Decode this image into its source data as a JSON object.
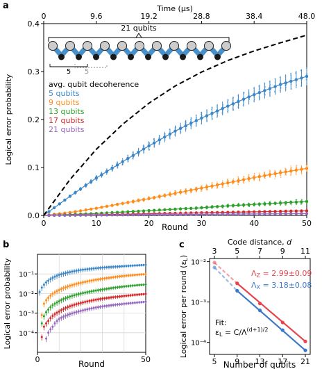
{
  "chart_data": [
    {
      "panel": "a",
      "type": "line",
      "xlabel": "Round",
      "ylabel": "Logical error probability",
      "x_top_label": "Time (μs)",
      "xlim": [
        0,
        50
      ],
      "ylim": [
        0,
        0.4
      ],
      "x_ticks": [
        "0",
        "10",
        "20",
        "30",
        "40",
        "50"
      ],
      "y_ticks": [
        "0.0",
        "0.1",
        "0.2",
        "0.3",
        "0.4"
      ],
      "x_top_ticks": [
        "0",
        "9.6",
        "19.2",
        "28.8",
        "38.4",
        "48.0"
      ],
      "legend_placement": "center-left",
      "legend": [
        "avg. qubit decoherence",
        "5 qubits",
        "9 qubits",
        "13 qubits",
        "17 qubits",
        "21 qubits"
      ],
      "inset": {
        "label_total": "21 qubits",
        "label_a": "5",
        "label_b": "5"
      },
      "reference": {
        "name": "avg. qubit decoherence",
        "color": "#000000",
        "style": "dashed",
        "x": [
          0,
          5,
          10,
          15,
          20,
          25,
          30,
          35,
          40,
          45,
          50
        ],
        "y": [
          0,
          0.075,
          0.138,
          0.19,
          0.234,
          0.27,
          0.299,
          0.323,
          0.343,
          0.36,
          0.376
        ]
      },
      "series": [
        {
          "name": "5 qubits",
          "color": "#3a86c8",
          "x": [
            0,
            5,
            10,
            15,
            20,
            25,
            30,
            35,
            40,
            45,
            50
          ],
          "y": [
            0,
            0.04,
            0.078,
            0.112,
            0.145,
            0.176,
            0.203,
            0.228,
            0.252,
            0.273,
            0.29
          ]
        },
        {
          "name": "9 qubits",
          "color": "#ff8c1a",
          "x": [
            0,
            5,
            10,
            15,
            20,
            25,
            30,
            35,
            40,
            45,
            50
          ],
          "y": [
            0,
            0.006,
            0.015,
            0.025,
            0.035,
            0.046,
            0.057,
            0.068,
            0.079,
            0.089,
            0.098
          ]
        },
        {
          "name": "13 qubits",
          "color": "#2ca02c",
          "x": [
            0,
            5,
            10,
            15,
            20,
            25,
            30,
            35,
            40,
            45,
            50
          ],
          "y": [
            0,
            0.002,
            0.004,
            0.007,
            0.01,
            0.013,
            0.016,
            0.02,
            0.023,
            0.026,
            0.029
          ]
        },
        {
          "name": "17 qubits",
          "color": "#d62728",
          "x": [
            0,
            5,
            10,
            15,
            20,
            25,
            30,
            35,
            40,
            45,
            50
          ],
          "y": [
            0,
            0.0007,
            0.0015,
            0.0025,
            0.0035,
            0.0045,
            0.0055,
            0.0065,
            0.0075,
            0.0085,
            0.0095
          ]
        },
        {
          "name": "21 qubits",
          "color": "#9467bd",
          "x": [
            0,
            5,
            10,
            15,
            20,
            25,
            30,
            35,
            40,
            45,
            50
          ],
          "y": [
            0,
            0.0003,
            0.0007,
            0.0011,
            0.0015,
            0.0019,
            0.0023,
            0.0027,
            0.0031,
            0.0034,
            0.0038
          ]
        }
      ]
    },
    {
      "panel": "b",
      "type": "scatter",
      "xlabel": "Round",
      "ylabel": "Logical error probability",
      "xlim": [
        0,
        50
      ],
      "ylim": [
        1e-05,
        1
      ],
      "y_scale": "log",
      "grid": true,
      "x_ticks": [
        "0",
        "50"
      ],
      "y_ticks": [
        "10⁻¹",
        "10⁻²",
        "10⁻³",
        "10⁻⁴"
      ],
      "series": [
        {
          "name": "5 qubits",
          "color": "#3a86c8",
          "x": [
            1,
            3,
            5,
            10,
            20,
            30,
            40,
            50
          ],
          "y": [
            0.012,
            0.028,
            0.045,
            0.09,
            0.16,
            0.21,
            0.25,
            0.29
          ]
        },
        {
          "name": "9 qubits",
          "color": "#ff8c1a",
          "x": [
            2,
            3,
            5,
            10,
            20,
            30,
            40,
            50
          ],
          "y": [
            0.0008,
            0.003,
            0.006,
            0.015,
            0.035,
            0.057,
            0.079,
            0.098
          ]
        },
        {
          "name": "13 qubits",
          "color": "#2ca02c",
          "x": [
            2,
            3,
            5,
            10,
            20,
            30,
            40,
            50
          ],
          "y": [
            0.0003,
            0.0007,
            0.0015,
            0.004,
            0.01,
            0.016,
            0.023,
            0.029
          ]
        },
        {
          "name": "17 qubits",
          "color": "#d62728",
          "x": [
            2,
            3,
            5,
            10,
            20,
            30,
            40,
            50
          ],
          "y": [
            6e-05,
            0.0002,
            0.0004,
            0.0012,
            0.0033,
            0.0055,
            0.0075,
            0.0095
          ]
        },
        {
          "name": "21 qubits",
          "color": "#9467bd",
          "x": [
            4,
            5,
            7,
            10,
            20,
            30,
            40,
            50
          ],
          "y": [
            5e-05,
            0.0001,
            0.0002,
            0.0005,
            0.0013,
            0.0022,
            0.003,
            0.0038
          ]
        }
      ]
    },
    {
      "panel": "c",
      "type": "scatter",
      "xlabel": "Number of qubits",
      "ylabel": "Logical error per round (ε_L)",
      "x_top_label": "Code distance, d",
      "y_scale": "log",
      "ylim": [
        5e-05,
        0.012
      ],
      "x_ticks": [
        "5",
        "9",
        "13",
        "17",
        "21"
      ],
      "x_top_ticks": [
        "3",
        "5",
        "7",
        "9",
        "11"
      ],
      "y_ticks": [
        "10⁻²",
        "10⁻³",
        "10⁻⁴"
      ],
      "annotations": {
        "lambda_z": "Λ_Z = 2.99±0.09",
        "lambda_x": "Λ_X = 3.18±0.08",
        "fit_title": "Fit:",
        "fit_formula": "ε_L = C/Λ^((d+1)/2)"
      },
      "series": [
        {
          "name": "Λ_Z",
          "color": "#e8434b",
          "x": [
            5,
            9,
            13,
            17,
            21
          ],
          "y": [
            0.0095,
            0.0029,
            0.00092,
            0.00031,
            0.000105
          ]
        },
        {
          "name": "Λ_X",
          "color": "#3a78c8",
          "x": [
            5,
            9,
            13,
            17,
            21
          ],
          "y": [
            0.0072,
            0.0019,
            0.00062,
            0.0002,
            6.3e-05
          ]
        }
      ]
    }
  ]
}
